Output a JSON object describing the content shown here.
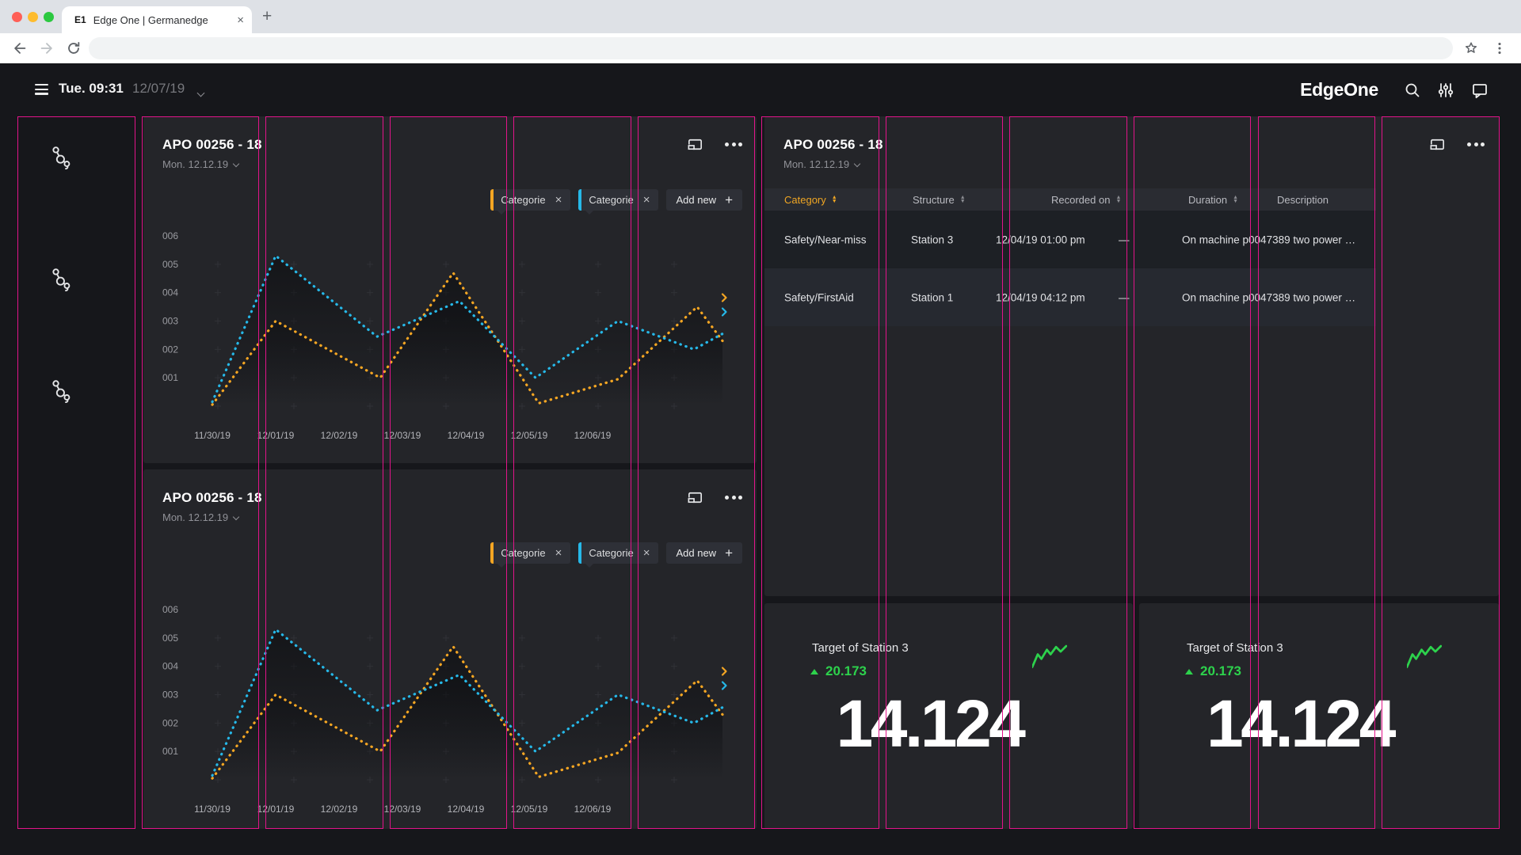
{
  "browser": {
    "tab_favicon": "E1",
    "tab_title": "Edge One | Germanedge",
    "new_tab_label": "+",
    "url_value": "",
    "icons": [
      "close-window-icon",
      "minimize-window-icon",
      "zoom-window-icon",
      "back-icon",
      "forward-icon",
      "reload-icon",
      "bookmark-star-icon",
      "browser-menu-icon"
    ]
  },
  "app_bar": {
    "time": "Tue. 09:31",
    "date": "12/07/19",
    "logo": "EdgeOne",
    "icons": [
      "menu-icon",
      "search-icon",
      "filter-sliders-icon",
      "chat-icon"
    ]
  },
  "left_rail": {
    "icons": [
      "node-graph-icon",
      "node-graph-icon",
      "node-graph-icon"
    ]
  },
  "chart_card": {
    "title": "APO 00256 - 18",
    "subtitle": "Mon. 12.12.19",
    "chips": [
      {
        "label": "Categorie",
        "color": "#f5a623"
      },
      {
        "label": "Categorie",
        "color": "#26b8e8"
      }
    ],
    "add_new_label": "Add new",
    "icons": [
      "present-to-screen-icon",
      "more-options-icon"
    ]
  },
  "chart_data": {
    "type": "line",
    "title": "APO 00256 - 18",
    "x_tick_labels": [
      "11/30/19",
      "12/01/19",
      "12/02/19",
      "12/03/19",
      "12/04/19",
      "12/05/19",
      "12/06/19"
    ],
    "y_tick_labels": [
      "006",
      "005",
      "004",
      "003",
      "002",
      "001"
    ],
    "ylim": [
      0,
      6.5
    ],
    "x_note": "x values are day offsets from 11/30/19; dotted lines extend past the last tick",
    "grid": "faint plus markers, no gridlines",
    "legend_position": "chips above chart",
    "series": [
      {
        "name": "Categorie",
        "color": "#f5a623",
        "style": "dotted",
        "points": [
          [
            0,
            0.05
          ],
          [
            1,
            3.0
          ],
          [
            2.65,
            1.0
          ],
          [
            3.8,
            4.7
          ],
          [
            5.15,
            0.1
          ],
          [
            6.4,
            0.95
          ],
          [
            7.65,
            3.5
          ],
          [
            8.05,
            2.3
          ]
        ]
      },
      {
        "name": "Categorie",
        "color": "#26b8e8",
        "style": "dotted",
        "points": [
          [
            0,
            0.15
          ],
          [
            1,
            5.3
          ],
          [
            2.6,
            2.45
          ],
          [
            3.9,
            3.7
          ],
          [
            5.1,
            1.0
          ],
          [
            6.4,
            3.0
          ],
          [
            7.6,
            2.0
          ],
          [
            8.05,
            2.55
          ]
        ]
      }
    ]
  },
  "table_card": {
    "title": "APO 00256 - 18",
    "subtitle": "Mon. 12.12.19",
    "columns": [
      "Category",
      "Structure",
      "Recorded on",
      "Duration",
      "Description"
    ],
    "sortable": [
      true,
      true,
      true,
      true,
      false
    ],
    "active_sort": "Category",
    "rows": [
      [
        "Safety/Near-miss",
        "Station 3",
        "12/04/19 01:00 pm",
        "—",
        "On machine p0047389 two power …"
      ],
      [
        "Safety/FirstAid",
        "Station 1",
        "12/04/19 04:12 pm",
        "—",
        "On machine p0047389 two power …"
      ]
    ]
  },
  "kpi_cards": [
    {
      "label": "Target of Station 3",
      "delta": "20.173",
      "delta_direction": "up",
      "value": "14.124",
      "sparkline": [
        [
          0,
          24
        ],
        [
          6,
          10
        ],
        [
          10,
          15
        ],
        [
          16,
          5
        ],
        [
          20,
          10
        ],
        [
          26,
          2
        ],
        [
          31,
          7
        ],
        [
          37,
          1
        ]
      ]
    },
    {
      "label": "Target of Station 3",
      "delta": "20.173",
      "delta_direction": "up",
      "value": "14.124",
      "sparkline": [
        [
          0,
          24
        ],
        [
          6,
          10
        ],
        [
          10,
          15
        ],
        [
          16,
          5
        ],
        [
          20,
          10
        ],
        [
          26,
          2
        ],
        [
          31,
          7
        ],
        [
          37,
          1
        ]
      ]
    }
  ],
  "colors": {
    "accent_orange": "#f5a623",
    "accent_cyan": "#26b8e8",
    "accent_green": "#2dd24c",
    "grid_overlay_pink": "#e2148a",
    "card_bg": "#242529",
    "page_bg": "#16171b"
  },
  "grid_overlay": {
    "columns": 12
  }
}
